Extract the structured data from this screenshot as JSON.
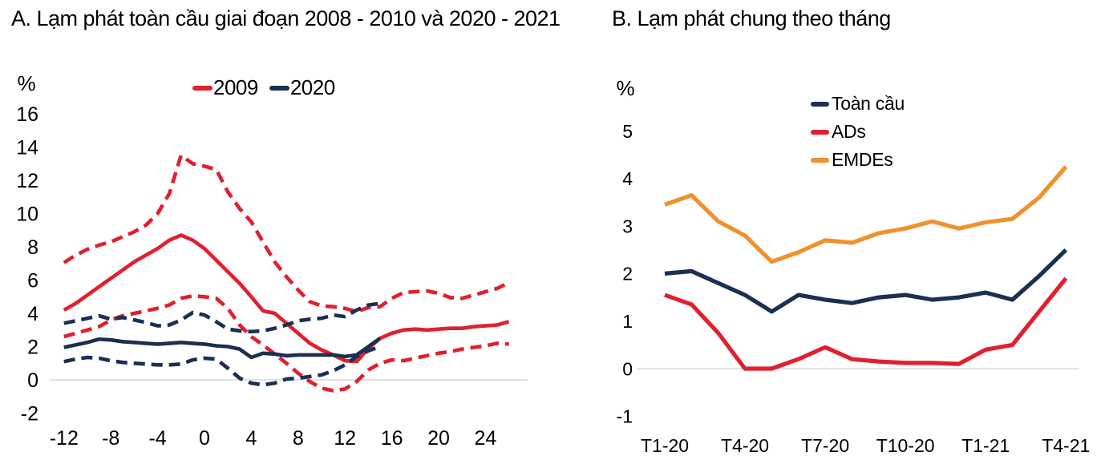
{
  "colors": {
    "red_2009_ads": "#e0202f",
    "navy_2020_global": "#1b2f52",
    "orange_emdes": "#f0912d",
    "gridline": "#d9d9d9",
    "text": "#000000"
  },
  "chart_data": [
    {
      "type": "line",
      "title": "A. Lạm phát toàn cầu giai đoạn 2008 - 2010 và 2020 - 2021",
      "ylabel": "%",
      "xlabel": "",
      "ylim": [
        -2,
        16
      ],
      "xlim": [
        -12,
        26
      ],
      "y_ticks": [
        16,
        14,
        12,
        10,
        8,
        6,
        4,
        2,
        0,
        -2
      ],
      "x_ticks": [
        -12,
        -8,
        -4,
        0,
        4,
        8,
        12,
        16,
        20,
        24
      ],
      "grid": "zero-line-only",
      "legend_position": "top-center",
      "legend": [
        {
          "label": "2009",
          "color": "#e0202f"
        },
        {
          "label": "2020",
          "color": "#1b2f52"
        }
      ],
      "series": [
        {
          "name": "2009-median",
          "color": "#e0202f",
          "dash": "solid",
          "x_start": -12,
          "values": [
            4.2,
            4.6,
            5.1,
            5.6,
            6.1,
            6.6,
            7.1,
            7.5,
            7.9,
            8.4,
            8.7,
            8.4,
            7.9,
            7.2,
            6.5,
            5.8,
            5.0,
            4.15,
            4.0,
            3.4,
            2.8,
            2.2,
            1.8,
            1.5,
            1.15,
            1.1,
            1.9,
            2.5,
            2.8,
            3.0,
            3.05,
            3.0,
            3.05,
            3.1,
            3.1,
            3.2,
            3.25,
            3.3,
            3.5
          ]
        },
        {
          "name": "2009-upper-band",
          "color": "#e0202f",
          "dash": "dashed",
          "x_start": -12,
          "values": [
            7.05,
            7.5,
            7.85,
            8.1,
            8.3,
            8.6,
            8.9,
            9.3,
            10.0,
            11.2,
            13.5,
            13.0,
            12.85,
            12.65,
            11.3,
            10.3,
            9.5,
            8.3,
            7.1,
            6.2,
            5.4,
            4.7,
            4.45,
            4.4,
            4.3,
            4.1,
            4.35,
            4.4,
            4.9,
            5.25,
            5.3,
            5.35,
            5.2,
            4.95,
            4.9,
            5.1,
            5.3,
            5.5,
            5.85
          ]
        },
        {
          "name": "2009-lower-band",
          "color": "#e0202f",
          "dash": "dashed",
          "x_start": -12,
          "values": [
            2.6,
            2.8,
            3.0,
            3.2,
            3.6,
            3.85,
            4.0,
            4.15,
            4.3,
            4.5,
            4.9,
            5.05,
            5.0,
            4.9,
            4.3,
            3.3,
            2.6,
            2.1,
            1.55,
            1.0,
            0.4,
            -0.1,
            -0.5,
            -0.65,
            -0.55,
            -0.1,
            0.6,
            1.0,
            1.2,
            1.15,
            1.3,
            1.45,
            1.6,
            1.7,
            1.85,
            1.95,
            2.05,
            2.2,
            2.15
          ]
        },
        {
          "name": "2020-median",
          "color": "#1b2f52",
          "dash": "solid",
          "x_start": -12,
          "values": [
            1.95,
            2.1,
            2.25,
            2.45,
            2.4,
            2.3,
            2.25,
            2.2,
            2.15,
            2.2,
            2.25,
            2.2,
            2.15,
            2.05,
            2.0,
            1.85,
            1.35,
            1.6,
            1.55,
            1.45,
            1.5,
            1.5,
            1.5,
            1.5,
            1.4,
            1.5,
            2.0,
            2.5
          ]
        },
        {
          "name": "2020-upper-band",
          "color": "#1b2f52",
          "dash": "dashed",
          "x_start": -12,
          "values": [
            3.4,
            3.55,
            3.7,
            3.85,
            3.65,
            3.75,
            3.6,
            3.45,
            3.25,
            3.3,
            3.6,
            4.05,
            3.9,
            3.5,
            3.05,
            2.95,
            2.9,
            2.95,
            3.1,
            3.3,
            3.55,
            3.65,
            3.7,
            3.9,
            3.8,
            4.2,
            4.5,
            4.6
          ]
        },
        {
          "name": "2020-lower-band",
          "color": "#1b2f52",
          "dash": "dashed",
          "x_start": -12,
          "values": [
            1.1,
            1.25,
            1.35,
            1.3,
            1.15,
            1.05,
            1.0,
            0.95,
            0.9,
            0.9,
            0.95,
            1.2,
            1.3,
            1.25,
            0.7,
            0.1,
            -0.2,
            -0.3,
            -0.2,
            0.05,
            0.1,
            0.2,
            0.3,
            0.55,
            0.9,
            1.4,
            1.75,
            2.0
          ]
        }
      ]
    },
    {
      "type": "line",
      "title": "B. Lạm phát chung theo tháng",
      "ylabel": "%",
      "xlabel": "",
      "ylim": [
        -1,
        5
      ],
      "y_ticks": [
        5,
        4,
        3,
        2,
        1,
        0,
        -1
      ],
      "categories": [
        "T1-20",
        "T2-20",
        "T3-20",
        "T4-20",
        "T5-20",
        "T6-20",
        "T7-20",
        "T8-20",
        "T9-20",
        "T10-20",
        "T11-20",
        "T12-20",
        "T1-21",
        "T2-21",
        "T3-21",
        "T4-21"
      ],
      "x_tick_labels": [
        "T1-20",
        "T4-20",
        "T7-20",
        "T10-20",
        "T1-21",
        "T4-21"
      ],
      "x_tick_indices": [
        0,
        3,
        6,
        9,
        12,
        15
      ],
      "grid": "zero-line-only",
      "legend_position": "top-right",
      "legend": [
        {
          "label": "Toàn cầu",
          "color": "#1b2f52"
        },
        {
          "label": "ADs",
          "color": "#e0202f"
        },
        {
          "label": "EMDEs",
          "color": "#f0912d"
        }
      ],
      "series": [
        {
          "name": "EMDEs",
          "color": "#f0912d",
          "dash": "solid",
          "values": [
            3.45,
            3.65,
            3.1,
            2.8,
            2.25,
            2.45,
            2.7,
            2.65,
            2.85,
            2.95,
            3.1,
            2.95,
            3.08,
            3.15,
            3.6,
            4.25
          ]
        },
        {
          "name": "Toàn cầu",
          "color": "#1b2f52",
          "dash": "solid",
          "values": [
            2.0,
            2.05,
            1.8,
            1.55,
            1.2,
            1.55,
            1.45,
            1.38,
            1.5,
            1.55,
            1.45,
            1.5,
            1.6,
            1.45,
            1.95,
            2.5
          ]
        },
        {
          "name": "ADs",
          "color": "#e0202f",
          "dash": "solid",
          "values": [
            1.55,
            1.35,
            0.75,
            0.0,
            0.0,
            0.2,
            0.45,
            0.2,
            0.15,
            0.12,
            0.12,
            0.1,
            0.4,
            0.5,
            1.2,
            1.9
          ]
        }
      ]
    }
  ]
}
